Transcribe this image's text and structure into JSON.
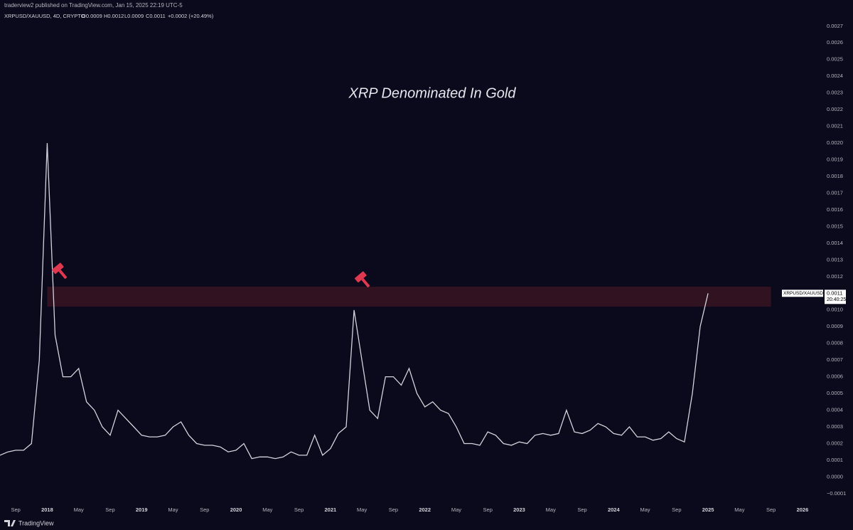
{
  "header": "traderview2 published on TradingView.com, Jan 15, 2025 22:19 UTC-5",
  "legend": {
    "symbol": "XRPUSD/XAUUSD, 4D, CRYPTO",
    "open": "O0.0009",
    "high": "H0.0012",
    "low": "L0.0009",
    "close": "C0.0011",
    "change": "+0.0002 (+20.49%)"
  },
  "footer": "TradingView",
  "chart_data": {
    "type": "line",
    "title": "XRP Denominated In Gold",
    "x": [
      "2017-07",
      "2017-08",
      "2017-09",
      "2017-10",
      "2017-11",
      "2017-12",
      "2018-01",
      "2018-02",
      "2018-03",
      "2018-04",
      "2018-05",
      "2018-06",
      "2018-07",
      "2018-08",
      "2018-09",
      "2018-10",
      "2018-11",
      "2018-12",
      "2019-01",
      "2019-02",
      "2019-03",
      "2019-04",
      "2019-05",
      "2019-06",
      "2019-07",
      "2019-08",
      "2019-09",
      "2019-10",
      "2019-11",
      "2019-12",
      "2020-01",
      "2020-02",
      "2020-03",
      "2020-04",
      "2020-05",
      "2020-06",
      "2020-07",
      "2020-08",
      "2020-09",
      "2020-10",
      "2020-11",
      "2020-12",
      "2021-01",
      "2021-02",
      "2021-03",
      "2021-04",
      "2021-05",
      "2021-06",
      "2021-07",
      "2021-08",
      "2021-09",
      "2021-10",
      "2021-11",
      "2021-12",
      "2022-01",
      "2022-02",
      "2022-03",
      "2022-04",
      "2022-05",
      "2022-06",
      "2022-07",
      "2022-08",
      "2022-09",
      "2022-10",
      "2022-11",
      "2022-12",
      "2023-01",
      "2023-02",
      "2023-03",
      "2023-04",
      "2023-05",
      "2023-06",
      "2023-07",
      "2023-08",
      "2023-09",
      "2023-10",
      "2023-11",
      "2023-12",
      "2024-01",
      "2024-02",
      "2024-03",
      "2024-04",
      "2024-05",
      "2024-06",
      "2024-07",
      "2024-08",
      "2024-09",
      "2024-10",
      "2024-11",
      "2024-12",
      "2025-01"
    ],
    "series": [
      {
        "name": "XRPUSD/XAUUSD",
        "color": "#d1d4dc",
        "values": [
          0.00013,
          0.00015,
          0.00016,
          0.00016,
          0.0002,
          0.0007,
          0.002,
          0.00085,
          0.0006,
          0.0006,
          0.00065,
          0.00045,
          0.0004,
          0.0003,
          0.00025,
          0.0004,
          0.00035,
          0.0003,
          0.00025,
          0.00024,
          0.00024,
          0.00025,
          0.0003,
          0.00033,
          0.00025,
          0.0002,
          0.00019,
          0.00019,
          0.00018,
          0.00015,
          0.00016,
          0.0002,
          0.00011,
          0.00012,
          0.00012,
          0.00011,
          0.00012,
          0.00015,
          0.00013,
          0.00013,
          0.00025,
          0.00013,
          0.00017,
          0.00026,
          0.0003,
          0.001,
          0.0007,
          0.0004,
          0.00035,
          0.0006,
          0.0006,
          0.00055,
          0.00065,
          0.0005,
          0.00042,
          0.00045,
          0.0004,
          0.00038,
          0.0003,
          0.0002,
          0.0002,
          0.00019,
          0.00027,
          0.00025,
          0.0002,
          0.00019,
          0.00021,
          0.0002,
          0.00025,
          0.00026,
          0.00025,
          0.00026,
          0.0004,
          0.00027,
          0.00026,
          0.00028,
          0.00032,
          0.0003,
          0.00026,
          0.00025,
          0.0003,
          0.00024,
          0.00024,
          0.00022,
          0.00023,
          0.00027,
          0.00023,
          0.00021,
          0.0005,
          0.0009,
          0.0011
        ]
      }
    ],
    "xlim": [
      "2017-07",
      "2026-02"
    ],
    "xticks": [
      {
        "value": "2017-09",
        "label": "Sep"
      },
      {
        "value": "2018-01",
        "label": "2018"
      },
      {
        "value": "2018-05",
        "label": "May"
      },
      {
        "value": "2018-09",
        "label": "Sep"
      },
      {
        "value": "2019-01",
        "label": "2019"
      },
      {
        "value": "2019-05",
        "label": "May"
      },
      {
        "value": "2019-09",
        "label": "Sep"
      },
      {
        "value": "2020-01",
        "label": "2020"
      },
      {
        "value": "2020-05",
        "label": "May"
      },
      {
        "value": "2020-09",
        "label": "Sep"
      },
      {
        "value": "2021-01",
        "label": "2021"
      },
      {
        "value": "2021-05",
        "label": "May"
      },
      {
        "value": "2021-09",
        "label": "Sep"
      },
      {
        "value": "2022-01",
        "label": "2022"
      },
      {
        "value": "2022-05",
        "label": "May"
      },
      {
        "value": "2022-09",
        "label": "Sep"
      },
      {
        "value": "2023-01",
        "label": "2023"
      },
      {
        "value": "2023-05",
        "label": "May"
      },
      {
        "value": "2023-09",
        "label": "Sep"
      },
      {
        "value": "2024-01",
        "label": "2024"
      },
      {
        "value": "2024-05",
        "label": "May"
      },
      {
        "value": "2024-09",
        "label": "Sep"
      },
      {
        "value": "2025-01",
        "label": "2025"
      },
      {
        "value": "2025-05",
        "label": "May"
      },
      {
        "value": "2025-09",
        "label": "Sep"
      },
      {
        "value": "2026-01",
        "label": "2026"
      }
    ],
    "ylim": [
      -0.00016,
      0.00278
    ],
    "yticks": [
      {
        "value": -0.0001,
        "label": "−0.0001"
      },
      {
        "value": 0,
        "label": "0.0000"
      },
      0.0001,
      0.0002,
      0.0003,
      0.0004,
      0.0005,
      0.0006,
      0.0007,
      0.0008,
      0.0009,
      {
        "value": 0.001,
        "label": "0.0010"
      },
      0.0011,
      0.0012,
      0.0013,
      0.0014,
      0.0015,
      0.0016,
      0.0017,
      0.0018,
      0.0019,
      {
        "value": 0.002,
        "label": "0.0020"
      },
      0.0021,
      0.0022,
      0.0023,
      0.0024,
      0.0025,
      0.0026,
      0.0027
    ],
    "grid": false,
    "highlight_zone": {
      "x": [
        "2018-01",
        "2025-09"
      ],
      "y": [
        0.00102,
        0.00114
      ],
      "color": "#3a1422"
    },
    "last_price": {
      "label": "XRPUSD/XAUUSD",
      "value": 0.0011,
      "countdown": "20:40:25"
    }
  }
}
